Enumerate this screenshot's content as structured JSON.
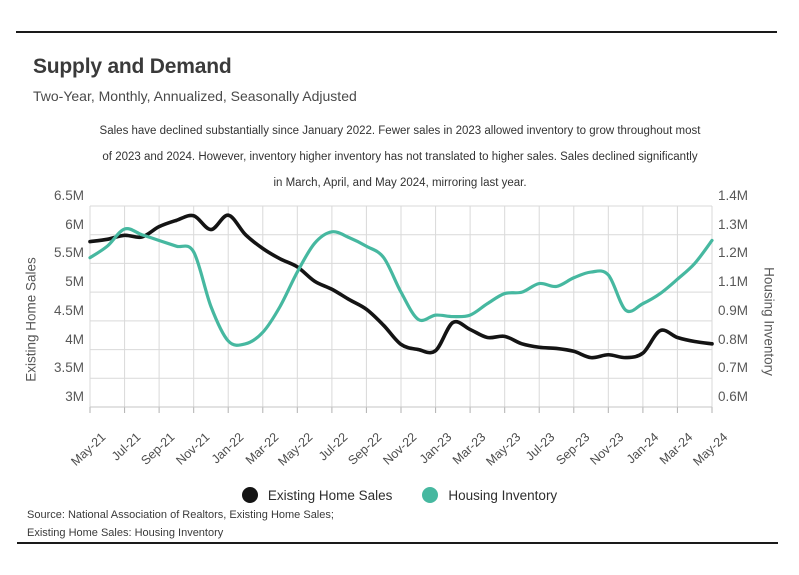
{
  "header": {
    "title": "Supply and Demand",
    "subtitle": "Two-Year, Monthly, Annualized, Seasonally Adjusted"
  },
  "annotation": {
    "lines": [
      "Sales have declined substantially since January 2022. Fewer sales in 2023 allowed inventory to grow throughout most",
      "of 2023 and 2024. However, inventory higher inventory has not translated to higher sales. Sales declined significantly",
      "in March, April, and May 2024, mirroring last year."
    ]
  },
  "chart_data": {
    "type": "line",
    "x": [
      "May-21",
      "Jun-21",
      "Jul-21",
      "Aug-21",
      "Sep-21",
      "Oct-21",
      "Nov-21",
      "Dec-21",
      "Jan-22",
      "Feb-22",
      "Mar-22",
      "Apr-22",
      "May-22",
      "Jun-22",
      "Jul-22",
      "Aug-22",
      "Sep-22",
      "Oct-22",
      "Nov-22",
      "Dec-22",
      "Jan-23",
      "Feb-23",
      "Mar-23",
      "Apr-23",
      "May-23",
      "Jun-23",
      "Jul-23",
      "Aug-23",
      "Sep-23",
      "Oct-23",
      "Nov-23",
      "Dec-23",
      "Jan-24",
      "Feb-24",
      "Mar-24",
      "Apr-24",
      "May-24"
    ],
    "x_tick_labels": [
      "May-21",
      "Jul-21",
      "Sep-21",
      "Nov-21",
      "Jan-22",
      "Mar-22",
      "May-22",
      "Jul-22",
      "Sep-22",
      "Nov-22",
      "Jan-23",
      "Mar-23",
      "May-23",
      "Jul-23",
      "Sep-23",
      "Nov-23",
      "Jan-24",
      "Mar-24",
      "May-24"
    ],
    "series": [
      {
        "name": "Existing Home Sales",
        "axis": "left",
        "color": "#141414",
        "stroke_width": 3.6,
        "values": [
          5.88,
          5.92,
          5.99,
          5.96,
          6.14,
          6.25,
          6.33,
          6.09,
          6.34,
          6.0,
          5.76,
          5.58,
          5.44,
          5.19,
          5.05,
          4.87,
          4.7,
          4.42,
          4.09,
          4.0,
          3.98,
          4.47,
          4.35,
          4.21,
          4.23,
          4.1,
          4.04,
          4.02,
          3.97,
          3.86,
          3.91,
          3.86,
          3.94,
          4.33,
          4.21,
          4.14,
          4.1
        ]
      },
      {
        "name": "Housing Inventory",
        "axis": "right",
        "color": "#46b8a0",
        "stroke_width": 3.2,
        "values": [
          1.22,
          1.26,
          1.32,
          1.3,
          1.28,
          1.26,
          1.24,
          1.0,
          0.83,
          0.82,
          0.86,
          1.0,
          1.17,
          1.27,
          1.31,
          1.29,
          1.26,
          1.22,
          1.1,
          0.91,
          0.94,
          0.93,
          0.94,
          1.02,
          1.09,
          1.1,
          1.13,
          1.12,
          1.15,
          1.17,
          1.16,
          0.975,
          1.02,
          1.09,
          1.145,
          1.2,
          1.28
        ]
      }
    ],
    "left_axis": {
      "title": "Existing Home Sales",
      "tick_labels": [
        "6.5M",
        "6M",
        "5.5M",
        "5M",
        "4.5M",
        "4M",
        "3.5M",
        "3M"
      ],
      "tick_values": [
        6.5,
        6.0,
        5.5,
        5.0,
        4.5,
        4.0,
        3.5,
        3.0
      ],
      "range": [
        3.0,
        6.5
      ]
    },
    "right_axis": {
      "title": "Housing Inventory",
      "tick_labels": [
        "1.4M",
        "1.3M",
        "1.2M",
        "1.1M",
        "0.9M",
        "0.8M",
        "0.7M",
        "0.6M"
      ],
      "tick_values": [
        1.4,
        1.3,
        1.2,
        1.1,
        0.9,
        0.8,
        0.7,
        0.6
      ]
    },
    "grid": true,
    "grid_color": "#d9d9d9",
    "tick_color": "#b0b0b0",
    "legend_position": "bottom"
  },
  "footer": {
    "source_line1": "Source:  National Association of Realtors, Existing Home Sales;",
    "source_line2": "Existing Home Sales: Housing Inventory"
  }
}
